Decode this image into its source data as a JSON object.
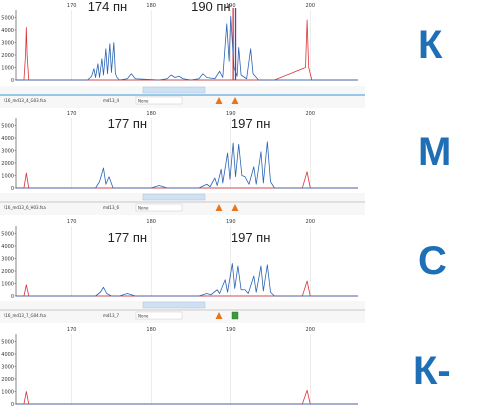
{
  "colors": {
    "trace_blue": "#2b64b4",
    "trace_red": "#d8363c",
    "letter_blue": "#1f6fb7",
    "marker_orange": "#e8751a",
    "marker_green": "#3c9a3c"
  },
  "chart_data": [
    {
      "type": "line",
      "sample_letter": "К",
      "x_ticks": [
        170,
        180,
        190,
        200
      ],
      "y_ticks": [
        0,
        1000,
        2000,
        3000,
        4000,
        5000
      ],
      "xlim": [
        163,
        206
      ],
      "ylim": [
        0,
        5600
      ],
      "annotations": [
        {
          "text": "174 пн",
          "x": 174.5,
          "y": 5600
        },
        {
          "text": "190 пн",
          "x": 187.5,
          "y": 5600
        }
      ],
      "vertical_markers": [
        {
          "x": 190.3,
          "color": "#d8363c"
        },
        {
          "x": 190.6,
          "color": "#6a3aa0"
        }
      ],
      "series": [
        {
          "color": "#d8363c",
          "points": [
            [
              163,
              0
            ],
            [
              164,
              0
            ],
            [
              164.2,
              2000
            ],
            [
              164.3,
              4200
            ],
            [
              164.4,
              2000
            ],
            [
              164.6,
              0
            ],
            [
              195,
              0
            ],
            [
              195.5,
              0
            ],
            [
              199.4,
              1000
            ],
            [
              199.6,
              4800
            ],
            [
              199.8,
              1000
            ],
            [
              200.2,
              0
            ],
            [
              206,
              0
            ]
          ]
        },
        {
          "color": "#2b64b4",
          "points": [
            [
              163,
              0
            ],
            [
              172,
              0
            ],
            [
              172.5,
              300
            ],
            [
              172.8,
              900
            ],
            [
              173,
              200
            ],
            [
              173.3,
              1300
            ],
            [
              173.5,
              200
            ],
            [
              173.8,
              1700
            ],
            [
              174,
              400
            ],
            [
              174.3,
              2500
            ],
            [
              174.5,
              500
            ],
            [
              174.8,
              2900
            ],
            [
              175,
              600
            ],
            [
              175.3,
              3000
            ],
            [
              175.5,
              500
            ],
            [
              175.7,
              200
            ],
            [
              176,
              0
            ],
            [
              177,
              100
            ],
            [
              177.5,
              500
            ],
            [
              178,
              100
            ],
            [
              181,
              0
            ],
            [
              182,
              100
            ],
            [
              182.5,
              400
            ],
            [
              183,
              200
            ],
            [
              183.5,
              300
            ],
            [
              184,
              100
            ],
            [
              185,
              0
            ],
            [
              186,
              100
            ],
            [
              186.5,
              500
            ],
            [
              187,
              200
            ],
            [
              188,
              100
            ],
            [
              188.6,
              700
            ],
            [
              189,
              200
            ],
            [
              189.5,
              4500
            ],
            [
              189.8,
              1500
            ],
            [
              190,
              5100
            ],
            [
              190.4,
              1000
            ],
            [
              190.8,
              300
            ],
            [
              191,
              2600
            ],
            [
              191.3,
              400
            ],
            [
              192,
              100
            ],
            [
              192.5,
              2500
            ],
            [
              192.8,
              500
            ],
            [
              193.5,
              0
            ],
            [
              206,
              0
            ]
          ]
        }
      ]
    },
    {
      "type": "line",
      "sample_letter": "М",
      "x_ticks": [
        170,
        180,
        190,
        200
      ],
      "y_ticks": [
        0,
        1000,
        2000,
        3000,
        4000,
        5000
      ],
      "xlim": [
        163,
        206
      ],
      "ylim": [
        0,
        5600
      ],
      "annotations": [
        {
          "text": "177 пн",
          "x": 177,
          "y": 4900
        },
        {
          "text": "197 пн",
          "x": 192.5,
          "y": 4900
        }
      ],
      "vertical_markers": [],
      "series": [
        {
          "color": "#d8363c",
          "points": [
            [
              163,
              0
            ],
            [
              164,
              0
            ],
            [
              164.3,
              1200
            ],
            [
              164.6,
              0
            ],
            [
              199,
              0
            ],
            [
              199.6,
              1300
            ],
            [
              200,
              0
            ],
            [
              206,
              0
            ]
          ]
        },
        {
          "color": "#2b64b4",
          "points": [
            [
              163,
              0
            ],
            [
              173,
              0
            ],
            [
              173.5,
              500
            ],
            [
              174,
              1600
            ],
            [
              174.3,
              300
            ],
            [
              174.7,
              900
            ],
            [
              175.2,
              0
            ],
            [
              176,
              0
            ],
            [
              180,
              0
            ],
            [
              181,
              200
            ],
            [
              182,
              0
            ],
            [
              186,
              0
            ],
            [
              187,
              300
            ],
            [
              187.4,
              100
            ],
            [
              188,
              800
            ],
            [
              188.3,
              200
            ],
            [
              188.8,
              1500
            ],
            [
              189,
              400
            ],
            [
              189.6,
              2800
            ],
            [
              189.9,
              700
            ],
            [
              190.3,
              3600
            ],
            [
              190.6,
              900
            ],
            [
              191,
              3500
            ],
            [
              191.4,
              1000
            ],
            [
              191.8,
              900
            ],
            [
              192.3,
              300
            ],
            [
              192.9,
              1700
            ],
            [
              193.2,
              300
            ],
            [
              193.8,
              2900
            ],
            [
              194.1,
              400
            ],
            [
              194.6,
              3700
            ],
            [
              195,
              500
            ],
            [
              195.5,
              0
            ],
            [
              206,
              0
            ]
          ]
        }
      ]
    },
    {
      "type": "line",
      "sample_letter": "С",
      "x_ticks": [
        170,
        180,
        190,
        200
      ],
      "y_ticks": [
        0,
        1000,
        2000,
        3000,
        4000,
        5000
      ],
      "xlim": [
        163,
        206
      ],
      "ylim": [
        0,
        5600
      ],
      "annotations": [
        {
          "text": "177 пн",
          "x": 177,
          "y": 4400
        },
        {
          "text": "197 пн",
          "x": 192.5,
          "y": 4400
        }
      ],
      "vertical_markers": [],
      "series": [
        {
          "color": "#d8363c",
          "points": [
            [
              163,
              0
            ],
            [
              164,
              0
            ],
            [
              164.3,
              900
            ],
            [
              164.6,
              0
            ],
            [
              199,
              0
            ],
            [
              199.6,
              1200
            ],
            [
              200,
              0
            ],
            [
              206,
              0
            ]
          ]
        },
        {
          "color": "#2b64b4",
          "points": [
            [
              163,
              0
            ],
            [
              173,
              0
            ],
            [
              173.6,
              300
            ],
            [
              174,
              700
            ],
            [
              174.4,
              200
            ],
            [
              175,
              0
            ],
            [
              176,
              0
            ],
            [
              177,
              200
            ],
            [
              178,
              0
            ],
            [
              186,
              0
            ],
            [
              187,
              200
            ],
            [
              187.5,
              100
            ],
            [
              188.3,
              500
            ],
            [
              188.6,
              200
            ],
            [
              189.3,
              1300
            ],
            [
              189.6,
              300
            ],
            [
              190.2,
              2600
            ],
            [
              190.5,
              600
            ],
            [
              190.9,
              2400
            ],
            [
              191.3,
              500
            ],
            [
              191.8,
              500
            ],
            [
              192.2,
              200
            ],
            [
              192.9,
              1600
            ],
            [
              193.2,
              300
            ],
            [
              193.8,
              2400
            ],
            [
              194.1,
              400
            ],
            [
              194.6,
              2500
            ],
            [
              195,
              300
            ],
            [
              195.5,
              0
            ],
            [
              206,
              0
            ]
          ]
        }
      ]
    },
    {
      "type": "line",
      "sample_letter": "К-",
      "x_ticks": [
        170,
        180,
        190,
        200
      ],
      "y_ticks": [
        0,
        1000,
        2000,
        3000,
        4000,
        5000
      ],
      "xlim": [
        163,
        206
      ],
      "ylim": [
        0,
        5600
      ],
      "annotations": [],
      "vertical_markers": [],
      "series": [
        {
          "color": "#d8363c",
          "points": [
            [
              163,
              0
            ],
            [
              164,
              0
            ],
            [
              164.3,
              1000
            ],
            [
              164.6,
              0
            ],
            [
              199,
              0
            ],
            [
              199.6,
              1100
            ],
            [
              200,
              0
            ],
            [
              206,
              0
            ]
          ]
        },
        {
          "color": "#2b64b4",
          "points": [
            [
              163,
              0
            ],
            [
              206,
              0
            ]
          ]
        }
      ]
    }
  ],
  "status_bars": [
    {
      "file_label": "\\16_md13_4_G03.fsa",
      "sample_label": "md13_4",
      "none_label": "None",
      "marker_types": [
        "warning",
        "warning"
      ]
    },
    {
      "file_label": "\\16_md13_6_H03.fsa",
      "sample_label": "md13_6",
      "none_label": "None",
      "marker_types": [
        "warning",
        "warning"
      ]
    },
    {
      "file_label": "\\16_md13_7_G04.fsa",
      "sample_label": "md13_7",
      "none_label": "None",
      "marker_types": [
        "warning",
        "ok"
      ]
    }
  ]
}
